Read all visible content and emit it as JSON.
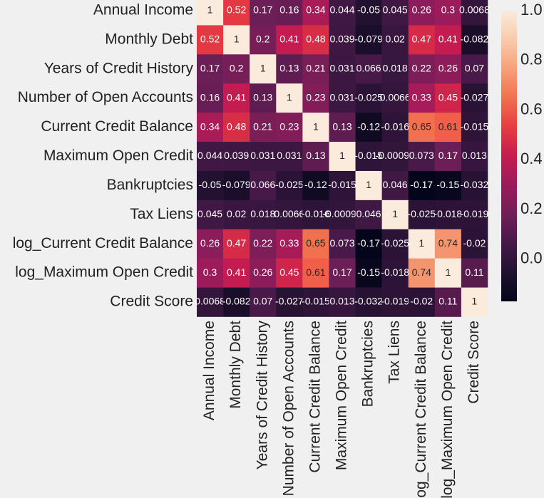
{
  "chart_data": {
    "type": "heatmap",
    "x_categories": [
      "Annual Income",
      "Monthly Debt",
      "Years of Credit History",
      "Number of Open Accounts",
      "Current Credit Balance",
      "Maximum Open Credit",
      "Bankruptcies",
      "Tax Liens",
      "log_Current Credit Balance",
      "log_Maximum Open Credit",
      "Credit Score"
    ],
    "y_categories": [
      "Annual Income",
      "Monthly Debt",
      "Years of Credit History",
      "Number of Open Accounts",
      "Current Credit Balance",
      "Maximum Open Credit",
      "Bankruptcies",
      "Tax Liens",
      "log_Current Credit Balance",
      "log_Maximum Open Credit",
      "Credit Score"
    ],
    "values": [
      [
        1,
        0.52,
        0.17,
        0.16,
        0.34,
        0.044,
        -0.05,
        0.045,
        0.26,
        0.3,
        0.0068
      ],
      [
        0.52,
        1,
        0.2,
        0.41,
        0.48,
        0.039,
        -0.079,
        0.02,
        0.47,
        0.41,
        -0.082
      ],
      [
        0.17,
        0.2,
        1,
        0.13,
        0.21,
        0.031,
        0.066,
        0.018,
        0.22,
        0.26,
        0.07
      ],
      [
        0.16,
        0.41,
        0.13,
        1,
        0.23,
        0.031,
        -0.025,
        0.0066,
        0.33,
        0.45,
        -0.027
      ],
      [
        0.34,
        0.48,
        0.21,
        0.23,
        1,
        0.13,
        -0.12,
        -0.016,
        0.65,
        0.61,
        -0.015
      ],
      [
        0.044,
        0.039,
        0.031,
        0.031,
        0.13,
        1,
        -0.015,
        -0.00097,
        0.073,
        0.17,
        0.013
      ],
      [
        -0.05,
        -0.079,
        0.066,
        -0.025,
        -0.12,
        -0.015,
        1,
        0.046,
        -0.17,
        -0.15,
        -0.032
      ],
      [
        0.045,
        0.02,
        0.018,
        0.0066,
        -0.016,
        -0.00097,
        0.046,
        1,
        -0.025,
        -0.018,
        -0.019
      ],
      [
        0.26,
        0.47,
        0.22,
        0.33,
        0.65,
        0.073,
        -0.17,
        -0.025,
        1,
        0.74,
        -0.02
      ],
      [
        0.3,
        0.41,
        0.26,
        0.45,
        0.61,
        0.17,
        -0.15,
        -0.018,
        0.74,
        1,
        0.11
      ],
      [
        0.0068,
        -0.082,
        0.07,
        -0.027,
        -0.015,
        0.013,
        -0.032,
        -0.019,
        -0.02,
        0.11,
        1
      ]
    ],
    "colormap": "rocket",
    "zlim": [
      -0.17,
      1
    ],
    "colorbar_ticks": [
      {
        "value": 0,
        "label": "0.0"
      },
      0.2,
      0.4,
      0.6,
      0.8,
      {
        "value": 1,
        "label": "1.0"
      }
    ]
  }
}
